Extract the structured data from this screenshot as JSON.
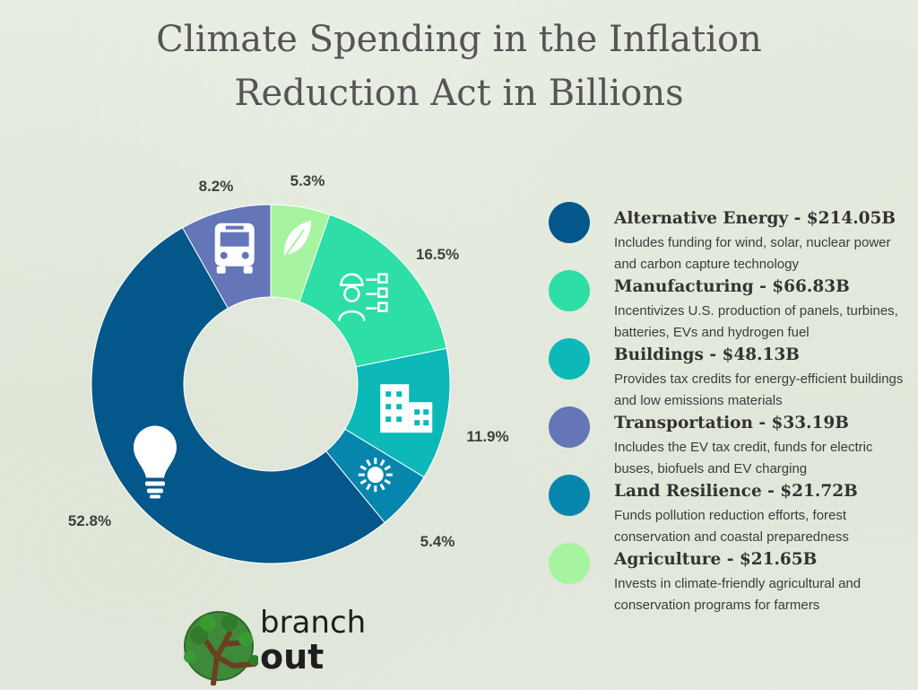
{
  "title_line1": "Climate Spending in the Inflation",
  "title_line2": "Reduction Act in Billions",
  "chart_data": {
    "type": "pie",
    "title": "Climate Spending in the Inflation Reduction Act in Billions",
    "donut": true,
    "series": [
      {
        "name": "Agriculture",
        "value": 21.65,
        "label": "5.3%",
        "color": "#a6f49f",
        "icon": "leaf-icon"
      },
      {
        "name": "Manufacturing",
        "value": 66.83,
        "label": "16.5%",
        "color": "#2ddfa6",
        "icon": "worker-icon"
      },
      {
        "name": "Buildings",
        "value": 48.13,
        "label": "11.9%",
        "color": "#0db8b8",
        "icon": "building-icon"
      },
      {
        "name": "Land Resilience",
        "value": 21.72,
        "label": "5.4%",
        "color": "#0786ad",
        "icon": "sun-icon"
      },
      {
        "name": "Alternative Energy",
        "value": 214.05,
        "label": "52.8%",
        "color": "#03578a",
        "icon": "lightbulb-icon"
      },
      {
        "name": "Transportation",
        "value": 33.19,
        "label": "8.2%",
        "color": "#6475b8",
        "icon": "bus-icon"
      }
    ]
  },
  "legend": [
    {
      "heading": "Alternative Energy - $214.05B",
      "desc": "Includes funding for wind, solar, nuclear power and carbon capture technology",
      "color": "#03578a"
    },
    {
      "heading": "Manufacturing - $66.83B",
      "desc": "Incentivizes U.S. production of panels, turbines, batteries, EVs and hydrogen fuel",
      "color": "#2ddfa6"
    },
    {
      "heading": "Buildings - $48.13B",
      "desc": "Provides tax credits for energy-efficient buildings and low emissions materials",
      "color": "#0db8b8"
    },
    {
      "heading": "Transportation - $33.19B",
      "desc": "Includes the EV tax credit, funds for electric buses, biofuels and EV charging",
      "color": "#6475b8"
    },
    {
      "heading": "Land Resilience - $21.72B",
      "desc": "Funds pollution reduction efforts, forest conservation and coastal preparedness",
      "color": "#0786ad"
    },
    {
      "heading": "Agriculture - $21.65B",
      "desc": "Invests in climate-friendly agricultural and conservation programs for farmers",
      "color": "#a6f49f"
    }
  ],
  "logo": {
    "line1": "branch",
    "line2": "out"
  }
}
